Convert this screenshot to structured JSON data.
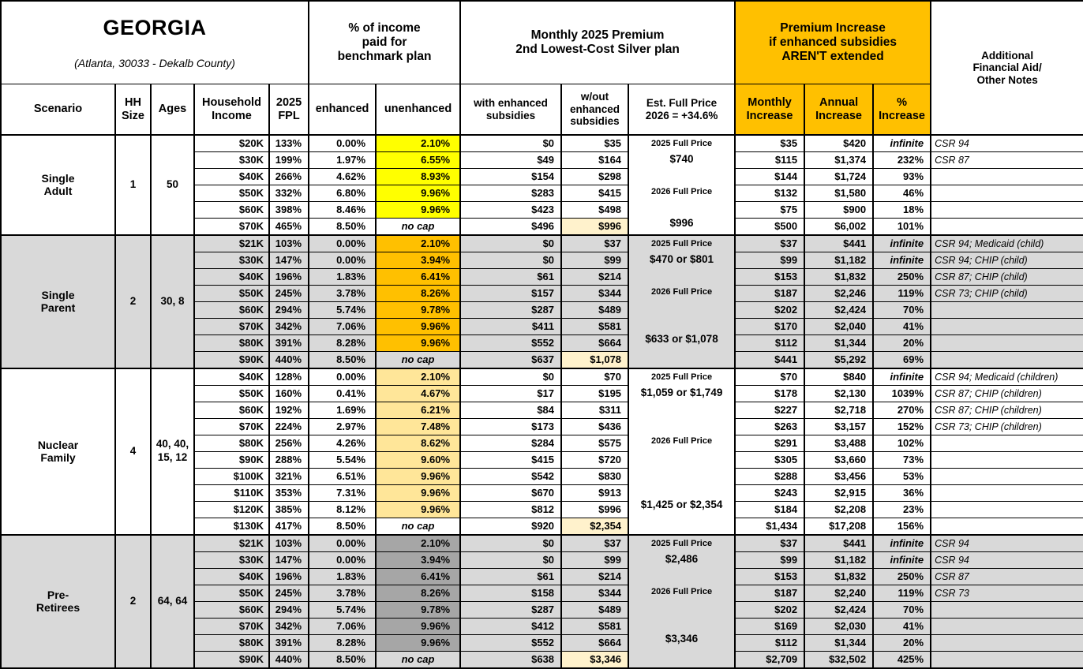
{
  "header": {
    "region": "GEORGIA",
    "region_sub": "(Atlanta, 30033 - Dekalb County)",
    "pct_income_group": "% of income\npaid for\nbenchmark plan",
    "premium_group": "Monthly 2025 Premium\n2nd Lowest-Cost Silver plan",
    "increase_group": "Premium Increase\nif enhanced subsidies\nAREN'T extended",
    "notes_col": "Additional\nFinancial Aid/\nOther Notes",
    "cols": {
      "scenario": "Scenario",
      "hh_size": "HH\nSize",
      "ages": "Ages",
      "income": "Household\nIncome",
      "fpl": "2025\nFPL",
      "enhanced": "enhanced",
      "unenhanced": "unenhanced",
      "with_sub": "with enhanced\nsubsidies",
      "without_sub": "w/out\nenhanced\nsubsidies",
      "full_price": "Est. Full Price\n2026 = +34.6%",
      "monthly": "Monthly\nIncrease",
      "annual": "Annual\nIncrease",
      "pct": "%\nIncrease"
    }
  },
  "colors": {
    "header_orange": "#FFC000",
    "row_gray": "#D9D9D9",
    "highlight_cream": "#FFF2CC",
    "single_adult_unenhanced": "#FFFF00",
    "single_parent_unenhanced": "#FFC000",
    "nuclear_family_unenhanced": "#FFE699",
    "pre_retirees_unenhanced": "#A6A6A6"
  },
  "groups": [
    {
      "name": "Single\nAdult",
      "hh_size": "1",
      "ages": "50",
      "shaded": false,
      "unenhanced_color": "#FFFF00",
      "rows": [
        {
          "income": "$20K",
          "fpl": "133%",
          "enhanced": "0.00%",
          "unenhanced": "2.10%",
          "with_sub": "$0",
          "without_sub": "$35",
          "without_hl": false,
          "full_price": "2025 Full Price",
          "monthly": "$35",
          "annual": "$420",
          "pct": "infinite",
          "note": "CSR 94"
        },
        {
          "income": "$30K",
          "fpl": "199%",
          "enhanced": "1.97%",
          "unenhanced": "6.55%",
          "with_sub": "$49",
          "without_sub": "$164",
          "without_hl": false,
          "full_price": "$740",
          "monthly": "$115",
          "annual": "$1,374",
          "pct": "232%",
          "note": "CSR 87"
        },
        {
          "income": "$40K",
          "fpl": "266%",
          "enhanced": "4.62%",
          "unenhanced": "8.93%",
          "with_sub": "$154",
          "without_sub": "$298",
          "without_hl": false,
          "full_price": "",
          "monthly": "$144",
          "annual": "$1,724",
          "pct": "93%",
          "note": ""
        },
        {
          "income": "$50K",
          "fpl": "332%",
          "enhanced": "6.80%",
          "unenhanced": "9.96%",
          "with_sub": "$283",
          "without_sub": "$415",
          "without_hl": false,
          "full_price": "2026 Full Price",
          "monthly": "$132",
          "annual": "$1,580",
          "pct": "46%",
          "note": ""
        },
        {
          "income": "$60K",
          "fpl": "398%",
          "enhanced": "8.46%",
          "unenhanced": "9.96%",
          "with_sub": "$423",
          "without_sub": "$498",
          "without_hl": false,
          "full_price": "",
          "monthly": "$75",
          "annual": "$900",
          "pct": "18%",
          "note": ""
        },
        {
          "income": "$70K",
          "fpl": "465%",
          "enhanced": "8.50%",
          "unenhanced": "no cap",
          "with_sub": "$496",
          "without_sub": "$996",
          "without_hl": true,
          "full_price": "$996",
          "monthly": "$500",
          "annual": "$6,002",
          "pct": "101%",
          "note": ""
        }
      ]
    },
    {
      "name": "Single\nParent",
      "hh_size": "2",
      "ages": "30, 8",
      "shaded": true,
      "unenhanced_color": "#FFC000",
      "rows": [
        {
          "income": "$21K",
          "fpl": "103%",
          "enhanced": "0.00%",
          "unenhanced": "2.10%",
          "with_sub": "$0",
          "without_sub": "$37",
          "without_hl": false,
          "full_price": "2025 Full Price",
          "monthly": "$37",
          "annual": "$441",
          "pct": "infinite",
          "note": "CSR 94; Medicaid (child)"
        },
        {
          "income": "$30K",
          "fpl": "147%",
          "enhanced": "0.00%",
          "unenhanced": "3.94%",
          "with_sub": "$0",
          "without_sub": "$99",
          "without_hl": false,
          "full_price": "$470 or $801",
          "monthly": "$99",
          "annual": "$1,182",
          "pct": "infinite",
          "note": "CSR 94; CHIP (child)"
        },
        {
          "income": "$40K",
          "fpl": "196%",
          "enhanced": "1.83%",
          "unenhanced": "6.41%",
          "with_sub": "$61",
          "without_sub": "$214",
          "without_hl": false,
          "full_price": "",
          "monthly": "$153",
          "annual": "$1,832",
          "pct": "250%",
          "note": "CSR 87; CHIP (child)"
        },
        {
          "income": "$50K",
          "fpl": "245%",
          "enhanced": "3.78%",
          "unenhanced": "8.26%",
          "with_sub": "$157",
          "without_sub": "$344",
          "without_hl": false,
          "full_price": "2026 Full Price",
          "monthly": "$187",
          "annual": "$2,246",
          "pct": "119%",
          "note": "CSR 73; CHIP (child)"
        },
        {
          "income": "$60K",
          "fpl": "294%",
          "enhanced": "5.74%",
          "unenhanced": "9.78%",
          "with_sub": "$287",
          "without_sub": "$489",
          "without_hl": false,
          "full_price": "",
          "monthly": "$202",
          "annual": "$2,424",
          "pct": "70%",
          "note": ""
        },
        {
          "income": "$70K",
          "fpl": "342%",
          "enhanced": "7.06%",
          "unenhanced": "9.96%",
          "with_sub": "$411",
          "without_sub": "$581",
          "without_hl": false,
          "full_price": "",
          "monthly": "$170",
          "annual": "$2,040",
          "pct": "41%",
          "note": ""
        },
        {
          "income": "$80K",
          "fpl": "391%",
          "enhanced": "8.28%",
          "unenhanced": "9.96%",
          "with_sub": "$552",
          "without_sub": "$664",
          "without_hl": false,
          "full_price": "$633 or $1,078",
          "monthly": "$112",
          "annual": "$1,344",
          "pct": "20%",
          "note": ""
        },
        {
          "income": "$90K",
          "fpl": "440%",
          "enhanced": "8.50%",
          "unenhanced": "no cap",
          "with_sub": "$637",
          "without_sub": "$1,078",
          "without_hl": true,
          "full_price": "",
          "monthly": "$441",
          "annual": "$5,292",
          "pct": "69%",
          "note": ""
        }
      ]
    },
    {
      "name": "Nuclear\nFamily",
      "hh_size": "4",
      "ages": "40, 40, 15, 12",
      "shaded": false,
      "unenhanced_color": "#FFE699",
      "rows": [
        {
          "income": "$40K",
          "fpl": "128%",
          "enhanced": "0.00%",
          "unenhanced": "2.10%",
          "with_sub": "$0",
          "without_sub": "$70",
          "without_hl": false,
          "full_price": "2025 Full Price",
          "monthly": "$70",
          "annual": "$840",
          "pct": "infinite",
          "note": "CSR 94; Medicaid (children)"
        },
        {
          "income": "$50K",
          "fpl": "160%",
          "enhanced": "0.41%",
          "unenhanced": "4.67%",
          "with_sub": "$17",
          "without_sub": "$195",
          "without_hl": false,
          "full_price": "$1,059 or $1,749",
          "monthly": "$178",
          "annual": "$2,130",
          "pct": "1039%",
          "note": "CSR 87; CHIP (children)"
        },
        {
          "income": "$60K",
          "fpl": "192%",
          "enhanced": "1.69%",
          "unenhanced": "6.21%",
          "with_sub": "$84",
          "without_sub": "$311",
          "without_hl": false,
          "full_price": "",
          "monthly": "$227",
          "annual": "$2,718",
          "pct": "270%",
          "note": "CSR 87; CHIP (children)"
        },
        {
          "income": "$70K",
          "fpl": "224%",
          "enhanced": "2.97%",
          "unenhanced": "7.48%",
          "with_sub": "$173",
          "without_sub": "$436",
          "without_hl": false,
          "full_price": "",
          "monthly": "$263",
          "annual": "$3,157",
          "pct": "152%",
          "note": "CSR 73; CHIP (children)"
        },
        {
          "income": "$80K",
          "fpl": "256%",
          "enhanced": "4.26%",
          "unenhanced": "8.62%",
          "with_sub": "$284",
          "without_sub": "$575",
          "without_hl": false,
          "full_price": "2026 Full Price",
          "monthly": "$291",
          "annual": "$3,488",
          "pct": "102%",
          "note": ""
        },
        {
          "income": "$90K",
          "fpl": "288%",
          "enhanced": "5.54%",
          "unenhanced": "9.60%",
          "with_sub": "$415",
          "without_sub": "$720",
          "without_hl": false,
          "full_price": "",
          "monthly": "$305",
          "annual": "$3,660",
          "pct": "73%",
          "note": ""
        },
        {
          "income": "$100K",
          "fpl": "321%",
          "enhanced": "6.51%",
          "unenhanced": "9.96%",
          "with_sub": "$542",
          "without_sub": "$830",
          "without_hl": false,
          "full_price": "",
          "monthly": "$288",
          "annual": "$3,456",
          "pct": "53%",
          "note": ""
        },
        {
          "income": "$110K",
          "fpl": "353%",
          "enhanced": "7.31%",
          "unenhanced": "9.96%",
          "with_sub": "$670",
          "without_sub": "$913",
          "without_hl": false,
          "full_price": "",
          "monthly": "$243",
          "annual": "$2,915",
          "pct": "36%",
          "note": ""
        },
        {
          "income": "$120K",
          "fpl": "385%",
          "enhanced": "8.12%",
          "unenhanced": "9.96%",
          "with_sub": "$812",
          "without_sub": "$996",
          "without_hl": false,
          "full_price": "$1,425 or $2,354",
          "monthly": "$184",
          "annual": "$2,208",
          "pct": "23%",
          "note": ""
        },
        {
          "income": "$130K",
          "fpl": "417%",
          "enhanced": "8.50%",
          "unenhanced": "no cap",
          "with_sub": "$920",
          "without_sub": "$2,354",
          "without_hl": true,
          "full_price": "",
          "monthly": "$1,434",
          "annual": "$17,208",
          "pct": "156%",
          "note": ""
        }
      ]
    },
    {
      "name": "Pre-\nRetirees",
      "hh_size": "2",
      "ages": "64, 64",
      "shaded": true,
      "unenhanced_color": "#A6A6A6",
      "rows": [
        {
          "income": "$21K",
          "fpl": "103%",
          "enhanced": "0.00%",
          "unenhanced": "2.10%",
          "with_sub": "$0",
          "without_sub": "$37",
          "without_hl": false,
          "full_price": "2025 Full Price",
          "monthly": "$37",
          "annual": "$441",
          "pct": "infinite",
          "note": "CSR 94"
        },
        {
          "income": "$30K",
          "fpl": "147%",
          "enhanced": "0.00%",
          "unenhanced": "3.94%",
          "with_sub": "$0",
          "without_sub": "$99",
          "without_hl": false,
          "full_price": "$2,486",
          "monthly": "$99",
          "annual": "$1,182",
          "pct": "infinite",
          "note": "CSR 94"
        },
        {
          "income": "$40K",
          "fpl": "196%",
          "enhanced": "1.83%",
          "unenhanced": "6.41%",
          "with_sub": "$61",
          "without_sub": "$214",
          "without_hl": false,
          "full_price": "",
          "monthly": "$153",
          "annual": "$1,832",
          "pct": "250%",
          "note": "CSR 87"
        },
        {
          "income": "$50K",
          "fpl": "245%",
          "enhanced": "3.78%",
          "unenhanced": "8.26%",
          "with_sub": "$158",
          "without_sub": "$344",
          "without_hl": false,
          "full_price": "2026 Full Price",
          "monthly": "$187",
          "annual": "$2,240",
          "pct": "119%",
          "note": "CSR 73"
        },
        {
          "income": "$60K",
          "fpl": "294%",
          "enhanced": "5.74%",
          "unenhanced": "9.78%",
          "with_sub": "$287",
          "without_sub": "$489",
          "without_hl": false,
          "full_price": "",
          "monthly": "$202",
          "annual": "$2,424",
          "pct": "70%",
          "note": ""
        },
        {
          "income": "$70K",
          "fpl": "342%",
          "enhanced": "7.06%",
          "unenhanced": "9.96%",
          "with_sub": "$412",
          "without_sub": "$581",
          "without_hl": false,
          "full_price": "",
          "monthly": "$169",
          "annual": "$2,030",
          "pct": "41%",
          "note": ""
        },
        {
          "income": "$80K",
          "fpl": "391%",
          "enhanced": "8.28%",
          "unenhanced": "9.96%",
          "with_sub": "$552",
          "without_sub": "$664",
          "without_hl": false,
          "full_price": "$3,346",
          "monthly": "$112",
          "annual": "$1,344",
          "pct": "20%",
          "note": ""
        },
        {
          "income": "$90K",
          "fpl": "440%",
          "enhanced": "8.50%",
          "unenhanced": "no cap",
          "with_sub": "$638",
          "without_sub": "$3,346",
          "without_hl": true,
          "full_price": "",
          "monthly": "$2,709",
          "annual": "$32,502",
          "pct": "425%",
          "note": ""
        }
      ]
    }
  ]
}
